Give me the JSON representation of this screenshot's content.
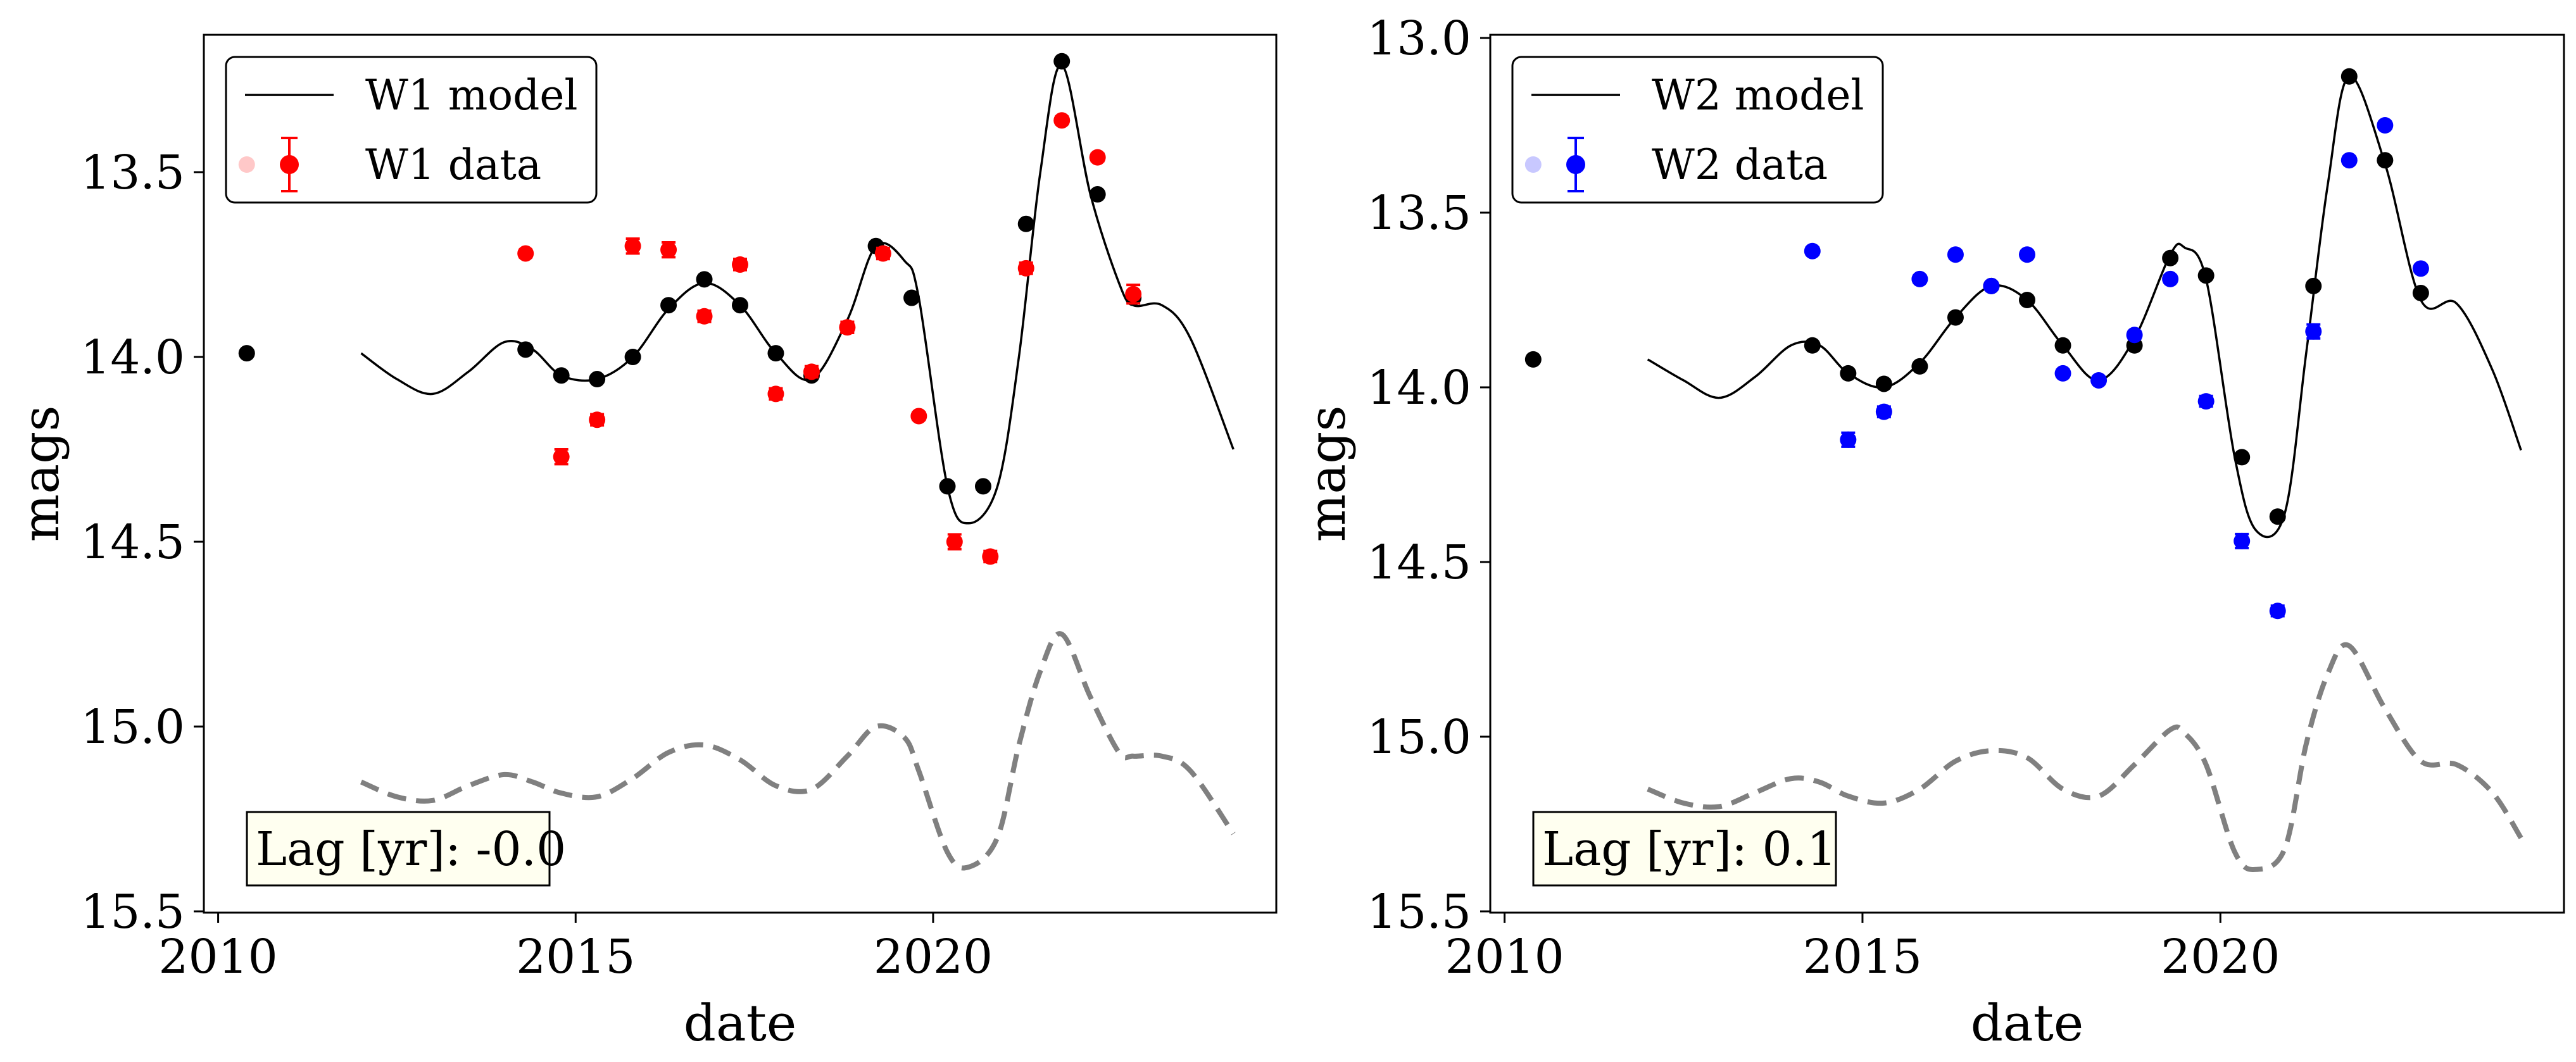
{
  "chart_data": [
    {
      "type": "line",
      "xlabel": "date",
      "ylabel": "mags",
      "xlim": [
        2009.8,
        2024.8
      ],
      "ylim": [
        15.5,
        13.0
      ],
      "y_inverted": true,
      "xticks": [
        2010,
        2015,
        2020
      ],
      "xtick_labels": [
        "2010",
        "2015",
        "2020"
      ],
      "yticks": [
        13.5,
        14.0,
        14.5,
        15.0,
        15.5
      ],
      "ytick_labels": [
        "13.5",
        "14.0",
        "14.5",
        "15.0",
        "15.5"
      ],
      "legend_placement": "top-left",
      "legend": {
        "model_label": "W1 model",
        "data_label": "W1 data"
      },
      "annotation": "Lag [yr]: -0.0",
      "colors": {
        "data": "#ff0000",
        "data_faded": "#ffc8c8",
        "model": "#000000",
        "offset_model": "#808080",
        "annotation_bg": "#fffff0"
      },
      "series": [
        {
          "name": "W1 model",
          "style": "solid",
          "x": [
            2012.0,
            2012.5,
            2013.0,
            2013.5,
            2014.0,
            2014.4,
            2014.8,
            2015.3,
            2015.8,
            2016.3,
            2016.8,
            2017.3,
            2017.8,
            2018.3,
            2018.8,
            2019.2,
            2019.6,
            2019.8,
            2020.2,
            2020.5,
            2020.9,
            2021.2,
            2021.5,
            2021.8,
            2022.2,
            2022.6,
            2022.8,
            2023.2,
            2023.6,
            2024.2
          ],
          "y": [
            13.99,
            14.06,
            14.1,
            14.04,
            13.96,
            13.98,
            14.05,
            14.06,
            14.0,
            13.87,
            13.8,
            13.86,
            13.99,
            14.06,
            13.9,
            13.7,
            13.74,
            13.84,
            14.35,
            14.45,
            14.35,
            14.0,
            13.5,
            13.21,
            13.56,
            13.8,
            13.86,
            13.86,
            13.95,
            14.25
          ]
        },
        {
          "name": "",
          "style": "dashed",
          "x": [
            2012.0,
            2012.5,
            2013.0,
            2013.5,
            2014.0,
            2014.4,
            2014.8,
            2015.3,
            2015.8,
            2016.3,
            2016.8,
            2017.3,
            2017.8,
            2018.3,
            2018.8,
            2019.2,
            2019.6,
            2019.8,
            2020.2,
            2020.5,
            2020.9,
            2021.2,
            2021.5,
            2021.8,
            2022.2,
            2022.6,
            2022.8,
            2023.2,
            2023.6,
            2024.2
          ],
          "y": [
            15.15,
            15.19,
            15.2,
            15.16,
            15.13,
            15.15,
            15.18,
            15.19,
            15.14,
            15.07,
            15.05,
            15.09,
            15.16,
            15.17,
            15.08,
            15.0,
            15.03,
            15.12,
            15.34,
            15.38,
            15.3,
            15.05,
            14.85,
            14.75,
            14.92,
            15.07,
            15.08,
            15.08,
            15.12,
            15.29
          ]
        },
        {
          "name": "",
          "style": "markers",
          "color": "#000000",
          "x": [
            2010.4,
            2014.3,
            2014.8,
            2015.3,
            2015.8,
            2016.3,
            2016.8,
            2017.3,
            2017.8,
            2018.3,
            2019.2,
            2019.7,
            2020.2,
            2020.7,
            2021.3,
            2021.8,
            2022.3,
            2022.8
          ],
          "y": [
            13.99,
            13.98,
            14.05,
            14.06,
            14.0,
            13.86,
            13.79,
            13.86,
            13.99,
            14.05,
            13.7,
            13.84,
            14.35,
            14.35,
            13.64,
            13.2,
            13.56,
            13.84
          ]
        },
        {
          "name": "W1 data",
          "style": "errorbar",
          "color": "#ff0000",
          "x": [
            2014.3,
            2014.8,
            2015.3,
            2015.8,
            2016.3,
            2016.8,
            2017.3,
            2017.8,
            2018.3,
            2018.8,
            2019.3,
            2019.8,
            2020.3,
            2020.8,
            2021.3,
            2021.8,
            2022.3,
            2022.8
          ],
          "y": [
            13.72,
            14.27,
            14.17,
            13.7,
            13.71,
            13.89,
            13.75,
            14.1,
            14.04,
            13.92,
            13.72,
            14.16,
            14.5,
            14.54,
            13.76,
            13.36,
            13.46,
            13.83
          ],
          "yerr": [
            0.01,
            0.02,
            0.015,
            0.02,
            0.02,
            0.015,
            0.015,
            0.015,
            0.015,
            0.015,
            0.015,
            0.01,
            0.02,
            0.015,
            0.015,
            0.01,
            0.01,
            0.025
          ]
        }
      ]
    },
    {
      "type": "line",
      "xlabel": "date",
      "ylabel": "mags",
      "xlim": [
        2009.8,
        2024.8
      ],
      "ylim": [
        15.5,
        12.98
      ],
      "y_inverted": true,
      "xticks": [
        2010,
        2015,
        2020
      ],
      "xtick_labels": [
        "2010",
        "2015",
        "2020"
      ],
      "yticks": [
        13.0,
        13.5,
        14.0,
        14.5,
        15.0,
        15.5
      ],
      "ytick_labels": [
        "13.0",
        "13.5",
        "14.0",
        "14.5",
        "15.0",
        "15.5"
      ],
      "legend_placement": "top-left",
      "legend": {
        "model_label": "W2 model",
        "data_label": "W2 data"
      },
      "annotation": "Lag [yr]: 0.1",
      "colors": {
        "data": "#0000ff",
        "data_faded": "#c8c8ff",
        "model": "#000000",
        "offset_model": "#808080",
        "annotation_bg": "#fffff0"
      },
      "series": [
        {
          "name": "W2 model",
          "style": "solid",
          "x": [
            2012.0,
            2012.5,
            2013.0,
            2013.5,
            2014.0,
            2014.4,
            2014.8,
            2015.3,
            2015.8,
            2016.3,
            2016.8,
            2017.3,
            2017.8,
            2018.3,
            2018.8,
            2019.3,
            2019.5,
            2019.8,
            2020.2,
            2020.5,
            2020.9,
            2021.2,
            2021.5,
            2021.8,
            2022.3,
            2022.8,
            2023.3,
            2023.8,
            2024.2
          ],
          "y": [
            13.92,
            13.98,
            14.03,
            13.97,
            13.88,
            13.88,
            13.96,
            14.0,
            13.93,
            13.8,
            13.71,
            13.75,
            13.88,
            13.98,
            13.86,
            13.62,
            13.6,
            13.69,
            14.2,
            14.41,
            14.36,
            13.9,
            13.42,
            13.11,
            13.36,
            13.75,
            13.76,
            13.95,
            14.18
          ]
        },
        {
          "name": "",
          "style": "dashed",
          "x": [
            2012.0,
            2012.5,
            2013.0,
            2013.5,
            2014.0,
            2014.4,
            2014.8,
            2015.3,
            2015.8,
            2016.3,
            2016.8,
            2017.3,
            2017.8,
            2018.3,
            2018.8,
            2019.3,
            2019.5,
            2019.8,
            2020.2,
            2020.5,
            2020.9,
            2021.2,
            2021.5,
            2021.8,
            2022.3,
            2022.8,
            2023.3,
            2023.8,
            2024.2
          ],
          "y": [
            15.15,
            15.19,
            15.2,
            15.16,
            15.12,
            15.13,
            15.17,
            15.19,
            15.15,
            15.07,
            15.04,
            15.06,
            15.15,
            15.17,
            15.08,
            14.98,
            14.99,
            15.08,
            15.33,
            15.38,
            15.32,
            15.02,
            14.82,
            14.74,
            14.92,
            15.07,
            15.08,
            15.16,
            15.29
          ]
        },
        {
          "name": "",
          "style": "markers",
          "color": "#000000",
          "x": [
            2010.4,
            2014.3,
            2014.8,
            2015.3,
            2015.8,
            2016.3,
            2016.8,
            2017.3,
            2017.8,
            2018.8,
            2019.3,
            2019.8,
            2020.3,
            2020.8,
            2021.3,
            2021.8,
            2022.3,
            2022.8
          ],
          "y": [
            13.92,
            13.88,
            13.96,
            13.99,
            13.94,
            13.8,
            13.71,
            13.75,
            13.88,
            13.88,
            13.63,
            13.68,
            14.2,
            14.37,
            13.71,
            13.11,
            13.35,
            13.73
          ]
        },
        {
          "name": "W2 data",
          "style": "errorbar",
          "color": "#0000ff",
          "x": [
            2014.3,
            2014.8,
            2015.3,
            2015.8,
            2016.3,
            2016.8,
            2017.3,
            2017.8,
            2018.3,
            2018.8,
            2019.3,
            2019.8,
            2020.3,
            2020.8,
            2021.3,
            2021.8,
            2022.3,
            2022.8
          ],
          "y": [
            13.61,
            14.15,
            14.07,
            13.69,
            13.62,
            13.71,
            13.62,
            13.96,
            13.98,
            13.85,
            13.69,
            14.04,
            14.44,
            14.64,
            13.84,
            13.35,
            13.25,
            13.66
          ],
          "yerr": [
            0.01,
            0.02,
            0.015,
            0.01,
            0.01,
            0.01,
            0.01,
            0.01,
            0.01,
            0.01,
            0.01,
            0.015,
            0.02,
            0.015,
            0.02,
            0.01,
            0.01,
            0.01
          ]
        }
      ]
    }
  ]
}
